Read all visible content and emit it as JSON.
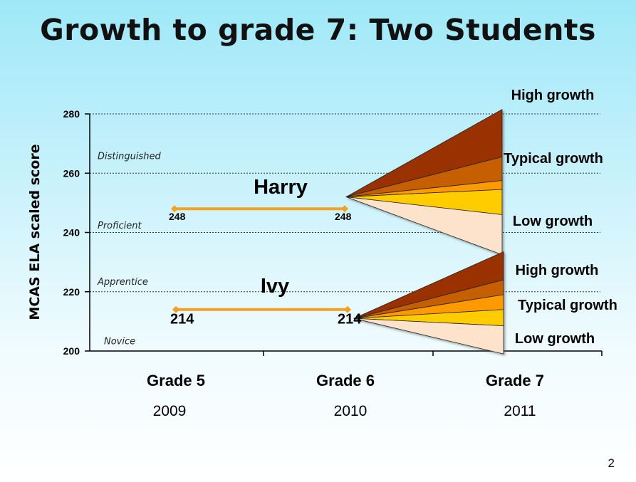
{
  "title": "Growth to grade 7: Two Students",
  "page_number": "2",
  "chart_data": {
    "type": "line",
    "ylabel": "MCAS ELA scaled score",
    "ylim": [
      200,
      280
    ],
    "yticks": [
      200,
      220,
      240,
      260,
      280
    ],
    "grid": "dotted horizontal lines at 220, 240, 260, 280",
    "categories": [
      {
        "grade": "Grade 5",
        "year": "2009"
      },
      {
        "grade": "Grade 6",
        "year": "2010"
      },
      {
        "grade": "Grade 7",
        "year": "2011"
      }
    ],
    "performance_levels": [
      {
        "label": "Distinguished",
        "y": 266
      },
      {
        "label": "Proficient",
        "y": 242.5
      },
      {
        "label": "Apprentice",
        "y": 223.5
      },
      {
        "label": "Novice",
        "y": 203.5
      }
    ],
    "students": [
      {
        "name": "Harry",
        "scores": [
          248,
          248
        ],
        "score_labels": [
          "248",
          "248"
        ],
        "fan_origin": 252,
        "fan_bounds": [
          281.5,
          265.5,
          257.5,
          254.5,
          246,
          232.5
        ],
        "growth_labels": [
          "High growth",
          "Typical growth",
          "Low growth"
        ]
      },
      {
        "name": "Ivy",
        "scores": [
          214,
          214
        ],
        "score_labels": [
          "214",
          "214"
        ],
        "fan_origin": 211,
        "fan_bounds": [
          233.5,
          224,
          219,
          214,
          208.5,
          199
        ]
      }
    ],
    "ivy_growth_labels": [
      "High growth",
      "Typical  growth",
      "Low growth"
    ],
    "fan_colors": [
      "#993300",
      "#c65f05",
      "#ff9900",
      "#ffcc00",
      "#fde3cc"
    ]
  }
}
